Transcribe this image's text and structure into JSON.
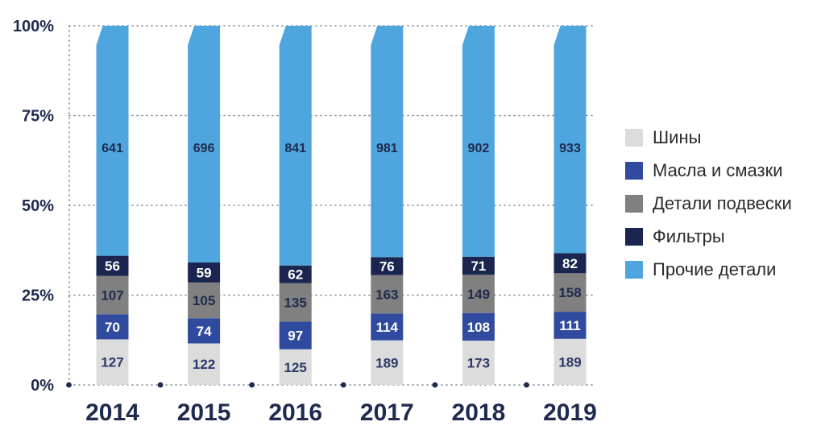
{
  "chart_data": {
    "type": "bar",
    "stacked": true,
    "normalized": true,
    "categories": [
      "2014",
      "2015",
      "2016",
      "2017",
      "2018",
      "2019"
    ],
    "series": [
      {
        "name": "Шины",
        "color": "#dcdcdc",
        "label_color": "#2b3a67",
        "values": [
          127,
          122,
          125,
          189,
          173,
          189
        ]
      },
      {
        "name": "Масла и смазки",
        "color": "#2f4a9e",
        "label_color": "#ffffff",
        "values": [
          70,
          74,
          97,
          114,
          108,
          111
        ]
      },
      {
        "name": "Детали подвески",
        "color": "#808080",
        "label_color": "#1f2a4f",
        "values": [
          107,
          105,
          135,
          163,
          149,
          158
        ]
      },
      {
        "name": "Фильтры",
        "color": "#1b2650",
        "label_color": "#ffffff",
        "values": [
          56,
          59,
          62,
          76,
          71,
          82
        ]
      },
      {
        "name": "Прочие детали",
        "color": "#4fa6de",
        "label_color": "#1f2a4f",
        "values": [
          641,
          696,
          841,
          981,
          902,
          933
        ]
      }
    ],
    "y_ticks": [
      "0%",
      "25%",
      "50%",
      "75%",
      "100%"
    ],
    "ylim": [
      0,
      100
    ],
    "grid": true,
    "legend_position": "right"
  }
}
